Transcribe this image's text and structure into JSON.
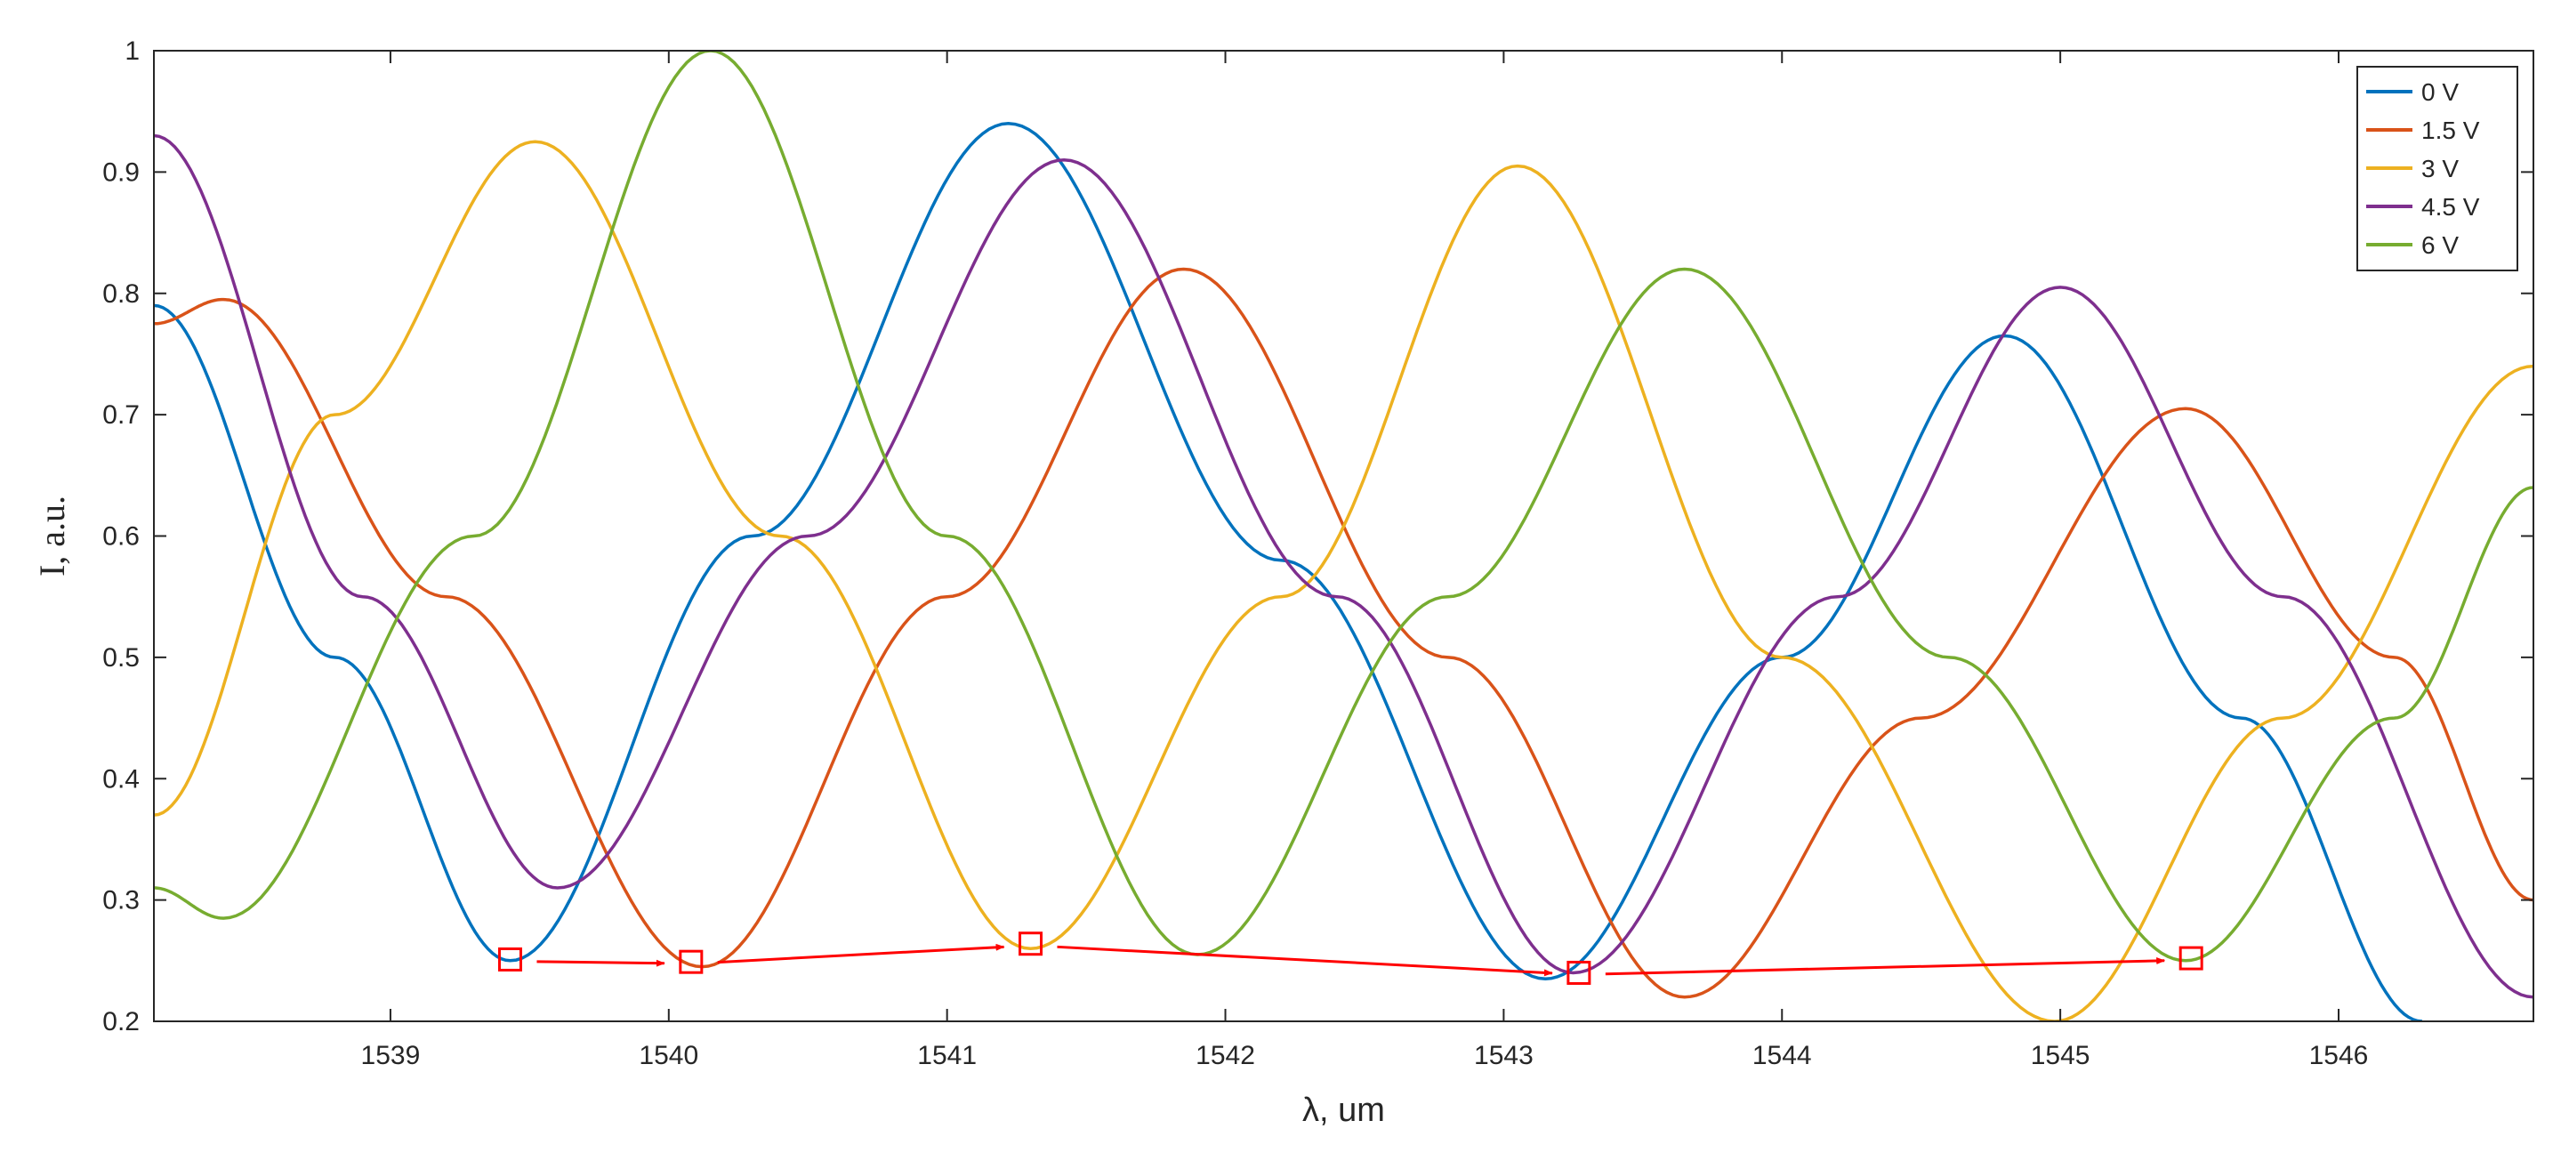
{
  "chart_data": {
    "type": "line",
    "xlabel": "λ, um",
    "ylabel": "I, a.u.",
    "xlim": [
      1538.15,
      1546.7
    ],
    "ylim": [
      0.2,
      1.0
    ],
    "xticks": [
      1539,
      1540,
      1541,
      1542,
      1543,
      1544,
      1545,
      1546
    ],
    "yticks": [
      0.2,
      0.3,
      0.4,
      0.5,
      0.6,
      0.7,
      0.8,
      0.9,
      1
    ],
    "ytick_labels": [
      "0.2",
      "0.3",
      "0.4",
      "0.5",
      "0.6",
      "0.7",
      "0.8",
      "0.9",
      "1"
    ],
    "grid": false,
    "legend_position": "top-right",
    "series": [
      {
        "name": "0 V",
        "color": "#0072BD",
        "x": [
          1538.15,
          1538.8,
          1539.43,
          1540.3,
          1541.22,
          1542.2,
          1543.15,
          1544.0,
          1544.8,
          1545.65,
          1546.3
        ],
        "y": [
          0.79,
          0.5,
          0.25,
          0.6,
          0.94,
          0.58,
          0.235,
          0.5,
          0.765,
          0.45,
          0.2
        ]
      },
      {
        "name": "1.5 V",
        "color": "#D95319",
        "x": [
          1538.15,
          1538.4,
          1539.2,
          1540.12,
          1541.0,
          1541.85,
          1542.8,
          1543.65,
          1544.5,
          1545.45,
          1546.2,
          1546.7
        ],
        "y": [
          0.775,
          0.795,
          0.55,
          0.245,
          0.55,
          0.82,
          0.5,
          0.22,
          0.45,
          0.705,
          0.5,
          0.3
        ]
      },
      {
        "name": "3 V",
        "color": "#EDB120",
        "x": [
          1538.15,
          1538.8,
          1539.52,
          1540.4,
          1541.3,
          1542.2,
          1543.05,
          1544.0,
          1544.98,
          1545.8,
          1546.7
        ],
        "y": [
          0.37,
          0.7,
          0.925,
          0.6,
          0.26,
          0.55,
          0.905,
          0.5,
          0.2,
          0.45,
          0.74
        ]
      },
      {
        "name": "4.5 V",
        "color": "#7E2F8E",
        "x": [
          1538.15,
          1538.9,
          1539.6,
          1540.5,
          1541.42,
          1542.4,
          1543.25,
          1544.2,
          1545.0,
          1545.8,
          1546.7
        ],
        "y": [
          0.93,
          0.55,
          0.31,
          0.6,
          0.91,
          0.55,
          0.24,
          0.55,
          0.805,
          0.55,
          0.22
        ]
      },
      {
        "name": "6 V",
        "color": "#77AC30",
        "x": [
          1538.15,
          1538.4,
          1539.3,
          1540.15,
          1541.0,
          1541.9,
          1542.8,
          1543.65,
          1544.6,
          1545.45,
          1546.2,
          1546.7
        ],
        "y": [
          0.31,
          0.285,
          0.6,
          1.0,
          0.6,
          0.255,
          0.55,
          0.82,
          0.5,
          0.25,
          0.45,
          0.64
        ]
      }
    ],
    "annotations": {
      "color": "#FF0000",
      "markers": [
        {
          "x": 1539.43,
          "y": 0.251
        },
        {
          "x": 1540.08,
          "y": 0.249
        },
        {
          "x": 1541.3,
          "y": 0.264
        },
        {
          "x": 1543.27,
          "y": 0.24
        },
        {
          "x": 1545.47,
          "y": 0.252
        }
      ]
    }
  }
}
